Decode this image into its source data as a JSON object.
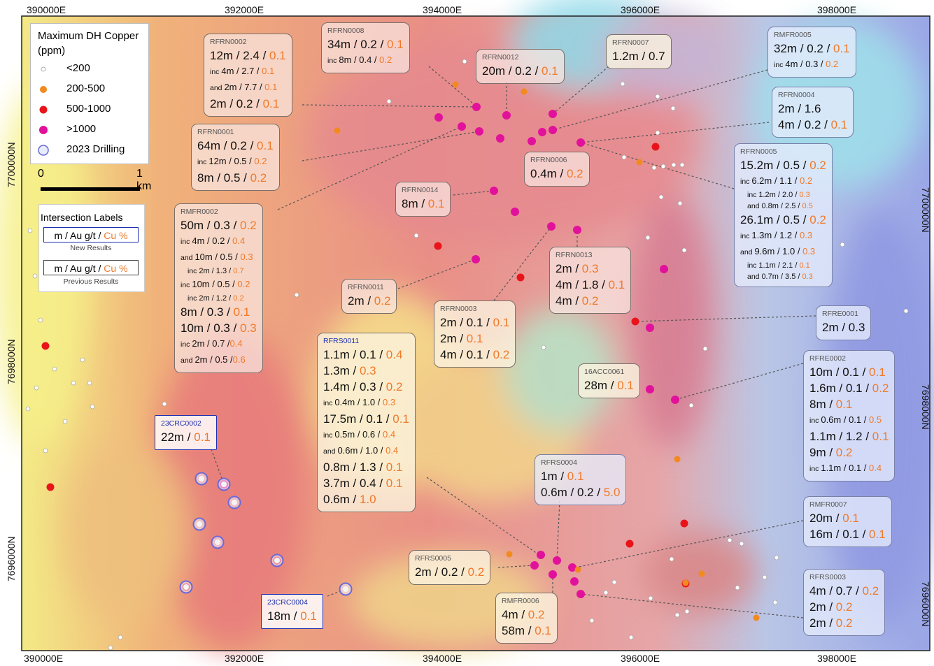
{
  "axes": {
    "x_ticks": [
      "390000E",
      "392000E",
      "394000E",
      "396000E",
      "398000E"
    ],
    "y_ticks": [
      "7700000N",
      "7698000N",
      "7696000N"
    ],
    "right_ticks": [
      "7700000N",
      "7698000N",
      "7696000N"
    ]
  },
  "legend": {
    "title": "Maximum DH Copper (ppm)",
    "items": [
      {
        "label": "<200",
        "color": "#ffffff"
      },
      {
        "label": "200-500",
        "color": "#f28a1e"
      },
      {
        "label": "500-1000",
        "color": "#e8141a"
      },
      {
        "label": ">1000",
        "color": "#e2119b"
      },
      {
        "label": "2023 Drilling",
        "color": "#6a6ad8"
      }
    ]
  },
  "scale_bar": {
    "start": "0",
    "end": "1 km"
  },
  "intersection_labels": {
    "title": "Intersection Labels",
    "template_main": "m / Au g/t / ",
    "template_cu": "Cu %",
    "new_caption": "New Results",
    "previous_caption": "Previous Results"
  },
  "labels": [
    {
      "id": "RFRN0002",
      "style": "pink",
      "lines": [
        {
          "t": "12m / 2.4 / ",
          "cu": "0.1"
        },
        {
          "p": "inc",
          "t": "4m / 2.7 / ",
          "cu": "0.1"
        },
        {
          "p": "and",
          "t": "2m / 7.7 / ",
          "cu": "0.1"
        },
        {
          "t": "2m / 0.2 / ",
          "cu": "0.1"
        }
      ]
    },
    {
      "id": "RFRN0008",
      "style": "pink",
      "lines": [
        {
          "t": "34m / 0.2 / ",
          "cu": "0.1"
        },
        {
          "p": "inc",
          "t": "8m / 0.4 / ",
          "cu": "0.2"
        }
      ]
    },
    {
      "id": "RFRN0012",
      "style": "pink",
      "lines": [
        {
          "t": "20m / 0.2 / ",
          "cu": "0.1"
        }
      ]
    },
    {
      "id": "RFRN0007",
      "style": "cream",
      "lines": [
        {
          "t": "1.2m / 0.7",
          "cu": ""
        }
      ]
    },
    {
      "id": "RMFR0005",
      "style": "blue",
      "lines": [
        {
          "t": "32m / 0.2 / ",
          "cu": "0.1"
        },
        {
          "p": "inc",
          "t": "4m / 0.3 / ",
          "cu": "0.2"
        }
      ]
    },
    {
      "id": "RFRN0004",
      "style": "blue",
      "lines": [
        {
          "t": "2m / 1.6",
          "cu": ""
        },
        {
          "t": "4m / 0.2 / ",
          "cu": "0.1"
        }
      ]
    },
    {
      "id": "RFRN0001",
      "style": "pink",
      "lines": [
        {
          "t": "64m / 0.2 / ",
          "cu": "0.1"
        },
        {
          "p": "inc",
          "t": "12m / 0.5 / ",
          "cu": "0.2"
        },
        {
          "t": "8m / 0.5 / ",
          "cu": "0.2"
        }
      ]
    },
    {
      "id": "RFRN0006",
      "style": "pink",
      "lines": [
        {
          "t": "0.4m / ",
          "cu": "0.2"
        }
      ]
    },
    {
      "id": "RFRN0005",
      "style": "blue",
      "lines": [
        {
          "t": "15.2m / 0.5 / ",
          "cu": "0.2"
        },
        {
          "p": "inc",
          "t": "6.2m / 1.1 / ",
          "cu": "0.2"
        },
        {
          "p": "inc",
          "t": "1.2m / 2.0 / ",
          "cu": "0.3",
          "x": true
        },
        {
          "p": "and",
          "t": "0.8m / 2.5 / ",
          "cu": "0.5",
          "x": true
        },
        {
          "t": "26.1m / 0.5 / ",
          "cu": "0.2"
        },
        {
          "p": "inc",
          "t": "1.3m / 1.2 / ",
          "cu": "0.3"
        },
        {
          "p": "and",
          "t": "9.6m / 1.0 / ",
          "cu": "0.3"
        },
        {
          "p": "inc",
          "t": "1.1m / 2.1 / ",
          "cu": "0.1",
          "x": true
        },
        {
          "p": "and",
          "t": "0.7m / 3.5 / ",
          "cu": "0.3",
          "x": true
        }
      ]
    },
    {
      "id": "RFRN0014",
      "style": "pink",
      "lines": [
        {
          "t": "8m / ",
          "cu": "0.1"
        }
      ]
    },
    {
      "id": "RMFR0002",
      "style": "pink",
      "lines": [
        {
          "t": "50m / 0.3 / ",
          "cu": "0.2"
        },
        {
          "p": "inc",
          "t": "4m / 0.2 / ",
          "cu": "0.4"
        },
        {
          "p": "and",
          "t": "10m / 0.5 / ",
          "cu": "0.3"
        },
        {
          "p": "inc",
          "t": "2m / 1.3 / ",
          "cu": "0.7",
          "x": true
        },
        {
          "p": "inc",
          "t": "10m / 0.5 / ",
          "cu": "0.2"
        },
        {
          "p": "inc",
          "t": "2m / 1.2 / ",
          "cu": "0.2",
          "x": true
        },
        {
          "t": "8m / 0.3 / ",
          "cu": "0.1"
        },
        {
          "t": "10m / 0.3 / ",
          "cu": "0.3"
        },
        {
          "p": "inc",
          "t": "2m / 0.7 /",
          "cu": "0.4"
        },
        {
          "p": "and",
          "t": "2m / 0.5 /",
          "cu": "0.6"
        }
      ]
    },
    {
      "id": "RFRN0013",
      "style": "pink",
      "lines": [
        {
          "t": "2m / ",
          "cu": "0.3"
        },
        {
          "t": "4m / 1.8 / ",
          "cu": "0.1"
        },
        {
          "t": "4m / ",
          "cu": "0.2"
        }
      ]
    },
    {
      "id": "RFRN0011",
      "style": "pink",
      "lines": [
        {
          "t": "2m / ",
          "cu": "0.2"
        }
      ]
    },
    {
      "id": "RFRN0003",
      "style": "cream",
      "lines": [
        {
          "t": "2m / 0.1 / ",
          "cu": "0.1"
        },
        {
          "t": "2m / ",
          "cu": "0.1"
        },
        {
          "t": "4m / 0.1 / ",
          "cu": "0.2"
        }
      ]
    },
    {
      "id": "RFRE0001",
      "style": "blue",
      "lines": [
        {
          "t": "2m / 0.3",
          "cu": ""
        }
      ]
    },
    {
      "id": "RFRS0011",
      "style": "newcream",
      "lines": [
        {
          "t": "1.1m / 0.1 / ",
          "cu": "0.4"
        },
        {
          "t": "1.3m / ",
          "cu": "0.3"
        },
        {
          "t": "1.4m / 0.3 / ",
          "cu": "0.2"
        },
        {
          "p": "inc",
          "t": "0.4m / 1.0 / ",
          "cu": "0.3",
          "s": true
        },
        {
          "t": "17.5m / 0.1 / ",
          "cu": "0.1"
        },
        {
          "p": "inc",
          "t": "0.5m / 0.6 / ",
          "cu": "0.4",
          "s": true
        },
        {
          "p": "and",
          "t": "0.6m / 1.0 / ",
          "cu": "0.4",
          "s": true
        },
        {
          "t": "0.8m / 1.3 / ",
          "cu": "0.1"
        },
        {
          "t": "3.7m / 0.4 / ",
          "cu": "0.1"
        },
        {
          "t": "0.6m / ",
          "cu": "1.0"
        }
      ]
    },
    {
      "id": "16ACC0061",
      "style": "cream",
      "lines": [
        {
          "t": "28m / ",
          "cu": "0.1"
        }
      ]
    },
    {
      "id": "RFRE0002",
      "style": "blue",
      "lines": [
        {
          "t": "10m / 0.1 / ",
          "cu": "0.1"
        },
        {
          "t": "1.6m / 0.1 / ",
          "cu": "0.2"
        },
        {
          "t": "8m / ",
          "cu": "0.1"
        },
        {
          "p": "inc",
          "t": "0.6m / 0.1 / ",
          "cu": "0.5",
          "s": true
        },
        {
          "t": "1.1m / 1.2 / ",
          "cu": "0.1"
        },
        {
          "t": "9m / ",
          "cu": "0.2"
        },
        {
          "p": "inc",
          "t": "1.1m / 0.1 / ",
          "cu": "0.4",
          "s": true
        }
      ]
    },
    {
      "id": "23CRC0002",
      "style": "new",
      "lines": [
        {
          "t": "22m / ",
          "cu": "0.1"
        }
      ]
    },
    {
      "id": "RFRS0004",
      "style": "blue",
      "lines": [
        {
          "t": "1m / ",
          "cu": "0.1"
        },
        {
          "t": "0.6m / 0.2 / ",
          "cu": "5.0"
        }
      ]
    },
    {
      "id": "RMFR0007",
      "style": "blue",
      "lines": [
        {
          "t": "20m / ",
          "cu": "0.1"
        },
        {
          "t": "16m / 0.1 / ",
          "cu": "0.1"
        }
      ]
    },
    {
      "id": "RFRS0005",
      "style": "cream",
      "lines": [
        {
          "t": "2m / 0.2 / ",
          "cu": "0.2"
        }
      ]
    },
    {
      "id": "RMFR0006",
      "style": "cream",
      "lines": [
        {
          "t": "4m / ",
          "cu": "0.2"
        },
        {
          "t": "58m / ",
          "cu": "0.1"
        }
      ]
    },
    {
      "id": "RFRS0003",
      "style": "blue",
      "lines": [
        {
          "t": "4m / 0.7 / ",
          "cu": "0.2"
        },
        {
          "t": "2m / ",
          "cu": "0.2"
        },
        {
          "t": "2m / ",
          "cu": "0.2"
        }
      ]
    },
    {
      "id": "23CRC0004",
      "style": "new",
      "lines": [
        {
          "t": "18m / ",
          "cu": "0.1"
        }
      ]
    }
  ]
}
